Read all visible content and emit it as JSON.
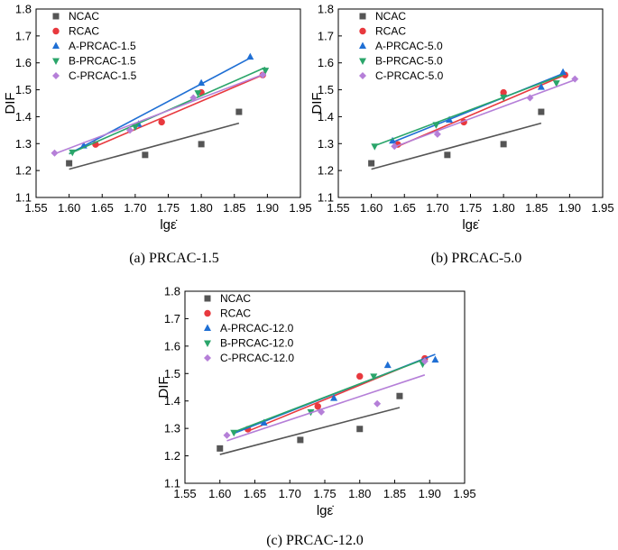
{
  "chart_data": [
    {
      "type": "scatter",
      "caption": "(a) PRCAC-1.5",
      "xlabel": "lgε̇",
      "ylabel": "DIF",
      "xlim": [
        1.55,
        1.95
      ],
      "ylim": [
        1.1,
        1.8
      ],
      "xticks": [
        "1.55",
        "1.60",
        "1.65",
        "1.70",
        "1.75",
        "1.80",
        "1.85",
        "1.90",
        "1.95"
      ],
      "yticks": [
        "1.1",
        "1.2",
        "1.3",
        "1.4",
        "1.5",
        "1.6",
        "1.7",
        "1.8"
      ],
      "legend": [
        "NCAC",
        "RCAC",
        "A-PRCAC-1.5",
        "B-PRCAC-1.5",
        "C-PRCAC-1.5"
      ],
      "series": [
        {
          "name": "NCAC",
          "color": "#555555",
          "marker": "square",
          "points": [
            [
              1.6,
              1.227
            ],
            [
              1.715,
              1.258
            ],
            [
              1.8,
              1.298
            ],
            [
              1.857,
              1.418
            ]
          ],
          "fit": [
            [
              1.6,
              1.205
            ],
            [
              1.857,
              1.376
            ]
          ]
        },
        {
          "name": "RCAC",
          "color": "#e8393e",
          "marker": "circle",
          "points": [
            [
              1.64,
              1.297
            ],
            [
              1.74,
              1.38
            ],
            [
              1.8,
              1.49
            ],
            [
              1.893,
              1.555
            ]
          ],
          "fit": [
            [
              1.64,
              1.29
            ],
            [
              1.893,
              1.555
            ]
          ]
        },
        {
          "name": "A-PRCAC-1.5",
          "color": "#1f6fd4",
          "marker": "triangle-up",
          "points": [
            [
              1.622,
              1.292
            ],
            [
              1.705,
              1.372
            ],
            [
              1.8,
              1.525
            ],
            [
              1.874,
              1.622
            ]
          ],
          "fit": [
            [
              1.6,
              1.262
            ],
            [
              1.874,
              1.618
            ]
          ]
        },
        {
          "name": "B-PRCAC-1.5",
          "color": "#2aa56a",
          "marker": "triangle-down",
          "points": [
            [
              1.605,
              1.268
            ],
            [
              1.7,
              1.362
            ],
            [
              1.795,
              1.488
            ],
            [
              1.897,
              1.572
            ]
          ],
          "fit": [
            [
              1.6,
              1.262
            ],
            [
              1.897,
              1.583
            ]
          ]
        },
        {
          "name": "C-PRCAC-1.5",
          "color": "#b57fd8",
          "marker": "diamond",
          "points": [
            [
              1.578,
              1.265
            ],
            [
              1.692,
              1.35
            ],
            [
              1.788,
              1.47
            ],
            [
              1.893,
              1.555
            ]
          ],
          "fit": [
            [
              1.578,
              1.262
            ],
            [
              1.897,
              1.56
            ]
          ]
        }
      ]
    },
    {
      "type": "scatter",
      "caption": "(b) PRCAC-5.0",
      "xlabel": "lgε̇",
      "ylabel": "DIF",
      "xlim": [
        1.55,
        1.95
      ],
      "ylim": [
        1.1,
        1.8
      ],
      "xticks": [
        "1.55",
        "1.60",
        "1.65",
        "1.70",
        "1.75",
        "1.80",
        "1.85",
        "1.90",
        "1.95"
      ],
      "yticks": [
        "1.1",
        "1.2",
        "1.3",
        "1.4",
        "1.5",
        "1.6",
        "1.7",
        "1.8"
      ],
      "legend": [
        "NCAC",
        "RCAC",
        "A-PRCAC-5.0",
        "B-PRCAC-5.0",
        "C-PRCAC-5.0"
      ],
      "series": [
        {
          "name": "NCAC",
          "color": "#555555",
          "marker": "square",
          "points": [
            [
              1.6,
              1.227
            ],
            [
              1.715,
              1.258
            ],
            [
              1.8,
              1.298
            ],
            [
              1.857,
              1.418
            ]
          ],
          "fit": [
            [
              1.6,
              1.205
            ],
            [
              1.857,
              1.376
            ]
          ]
        },
        {
          "name": "RCAC",
          "color": "#e8393e",
          "marker": "circle",
          "points": [
            [
              1.64,
              1.297
            ],
            [
              1.74,
              1.38
            ],
            [
              1.8,
              1.49
            ],
            [
              1.893,
              1.555
            ]
          ],
          "fit": [
            [
              1.64,
              1.29
            ],
            [
              1.893,
              1.555
            ]
          ]
        },
        {
          "name": "A-PRCAC-5.0",
          "color": "#1f6fd4",
          "marker": "triangle-up",
          "points": [
            [
              1.632,
              1.31
            ],
            [
              1.718,
              1.388
            ],
            [
              1.857,
              1.51
            ],
            [
              1.89,
              1.565
            ]
          ],
          "fit": [
            [
              1.632,
              1.305
            ],
            [
              1.89,
              1.56
            ]
          ]
        },
        {
          "name": "B-PRCAC-5.0",
          "color": "#2aa56a",
          "marker": "triangle-down",
          "points": [
            [
              1.605,
              1.29
            ],
            [
              1.698,
              1.37
            ],
            [
              1.8,
              1.472
            ],
            [
              1.88,
              1.525
            ]
          ],
          "fit": [
            [
              1.605,
              1.292
            ],
            [
              1.89,
              1.555
            ]
          ]
        },
        {
          "name": "C-PRCAC-5.0",
          "color": "#b57fd8",
          "marker": "diamond",
          "points": [
            [
              1.635,
              1.29
            ],
            [
              1.7,
              1.335
            ],
            [
              1.84,
              1.47
            ],
            [
              1.908,
              1.54
            ]
          ],
          "fit": [
            [
              1.635,
              1.288
            ],
            [
              1.908,
              1.537
            ]
          ]
        }
      ]
    },
    {
      "type": "scatter",
      "caption": "(c) PRCAC-12.0",
      "xlabel": "lgε̇",
      "ylabel": "DIF",
      "xlim": [
        1.55,
        1.95
      ],
      "ylim": [
        1.1,
        1.8
      ],
      "xticks": [
        "1.55",
        "1.60",
        "1.65",
        "1.70",
        "1.75",
        "1.80",
        "1.85",
        "1.90",
        "1.95"
      ],
      "yticks": [
        "1.1",
        "1.2",
        "1.3",
        "1.4",
        "1.5",
        "1.6",
        "1.7",
        "1.8"
      ],
      "legend": [
        "NCAC",
        "RCAC",
        "A-PRCAC-12.0",
        "B-PRCAC-12.0",
        "C-PRCAC-12.0"
      ],
      "series": [
        {
          "name": "NCAC",
          "color": "#555555",
          "marker": "square",
          "points": [
            [
              1.6,
              1.227
            ],
            [
              1.715,
              1.258
            ],
            [
              1.8,
              1.298
            ],
            [
              1.857,
              1.418
            ]
          ],
          "fit": [
            [
              1.6,
              1.205
            ],
            [
              1.857,
              1.376
            ]
          ]
        },
        {
          "name": "RCAC",
          "color": "#e8393e",
          "marker": "circle",
          "points": [
            [
              1.64,
              1.297
            ],
            [
              1.74,
              1.38
            ],
            [
              1.8,
              1.49
            ],
            [
              1.893,
              1.555
            ]
          ],
          "fit": [
            [
              1.64,
              1.29
            ],
            [
              1.893,
              1.555
            ]
          ]
        },
        {
          "name": "A-PRCAC-12.0",
          "color": "#1f6fd4",
          "marker": "triangle-up",
          "points": [
            [
              1.663,
              1.32
            ],
            [
              1.763,
              1.41
            ],
            [
              1.84,
              1.53
            ],
            [
              1.908,
              1.55
            ]
          ],
          "fit": [
            [
              1.618,
              1.28
            ],
            [
              1.908,
              1.57
            ]
          ]
        },
        {
          "name": "B-PRCAC-12.0",
          "color": "#2aa56a",
          "marker": "triangle-down",
          "points": [
            [
              1.62,
              1.285
            ],
            [
              1.73,
              1.36
            ],
            [
              1.82,
              1.49
            ],
            [
              1.89,
              1.535
            ]
          ],
          "fit": [
            [
              1.618,
              1.285
            ],
            [
              1.89,
              1.55
            ]
          ]
        },
        {
          "name": "C-PRCAC-12.0",
          "color": "#b57fd8",
          "marker": "diamond",
          "points": [
            [
              1.61,
              1.275
            ],
            [
              1.745,
              1.36
            ],
            [
              1.825,
              1.39
            ],
            [
              1.893,
              1.545
            ]
          ],
          "fit": [
            [
              1.61,
              1.255
            ],
            [
              1.893,
              1.495
            ]
          ]
        }
      ]
    }
  ]
}
